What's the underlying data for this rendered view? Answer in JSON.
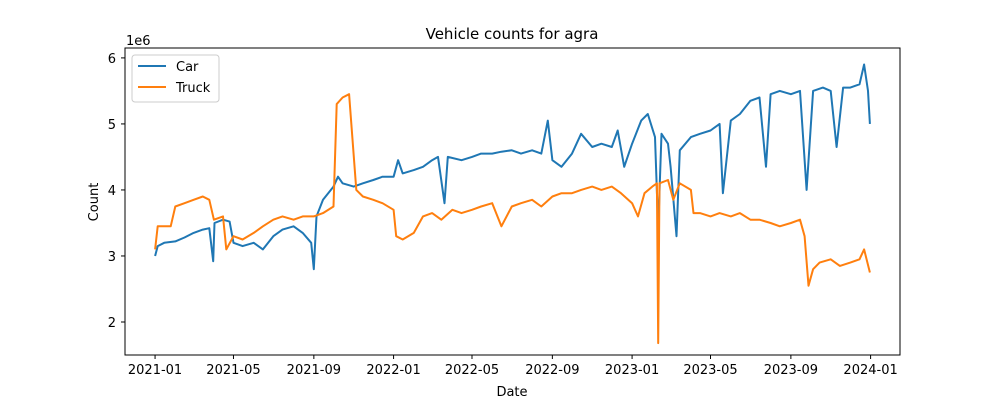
{
  "chart_data": {
    "type": "line",
    "title": "Vehicle counts for agra",
    "xlabel": "Date",
    "ylabel": "Count",
    "y_offset_label": "1e6",
    "xlim": [
      "2020-11-16",
      "2024-02-15"
    ],
    "ylim": [
      1.5,
      6.15
    ],
    "y_scale_factor": 1000000,
    "grid": false,
    "legend_position": "top-left",
    "x_ticks": [
      {
        "date": "2021-01-01",
        "label": "2021-01"
      },
      {
        "date": "2021-05-01",
        "label": "2021-05"
      },
      {
        "date": "2021-09-01",
        "label": "2021-09"
      },
      {
        "date": "2022-01-01",
        "label": "2022-01"
      },
      {
        "date": "2022-05-01",
        "label": "2022-05"
      },
      {
        "date": "2022-09-01",
        "label": "2022-09"
      },
      {
        "date": "2023-01-01",
        "label": "2023-01"
      },
      {
        "date": "2023-05-01",
        "label": "2023-05"
      },
      {
        "date": "2023-09-01",
        "label": "2023-09"
      },
      {
        "date": "2024-01-01",
        "label": "2024-01"
      }
    ],
    "y_ticks": [
      {
        "value": 2,
        "label": "2"
      },
      {
        "value": 3,
        "label": "3"
      },
      {
        "value": 4,
        "label": "4"
      },
      {
        "value": 5,
        "label": "5"
      },
      {
        "value": 6,
        "label": "6"
      }
    ],
    "series": [
      {
        "name": "Car",
        "color": "#1f77b4",
        "points": [
          [
            "2021-01-01",
            3.0
          ],
          [
            "2021-01-05",
            3.15
          ],
          [
            "2021-01-15",
            3.2
          ],
          [
            "2021-02-01",
            3.22
          ],
          [
            "2021-02-15",
            3.28
          ],
          [
            "2021-03-01",
            3.35
          ],
          [
            "2021-03-15",
            3.4
          ],
          [
            "2021-03-25",
            3.42
          ],
          [
            "2021-03-31",
            2.92
          ],
          [
            "2021-04-02",
            3.5
          ],
          [
            "2021-04-15",
            3.55
          ],
          [
            "2021-04-25",
            3.52
          ],
          [
            "2021-05-01",
            3.2
          ],
          [
            "2021-05-15",
            3.15
          ],
          [
            "2021-06-01",
            3.2
          ],
          [
            "2021-06-15",
            3.1
          ],
          [
            "2021-07-01",
            3.3
          ],
          [
            "2021-07-15",
            3.4
          ],
          [
            "2021-08-01",
            3.45
          ],
          [
            "2021-08-15",
            3.35
          ],
          [
            "2021-08-28",
            3.2
          ],
          [
            "2021-09-01",
            2.8
          ],
          [
            "2021-09-05",
            3.6
          ],
          [
            "2021-09-15",
            3.85
          ],
          [
            "2021-10-01",
            4.05
          ],
          [
            "2021-10-08",
            4.2
          ],
          [
            "2021-10-15",
            4.1
          ],
          [
            "2021-11-01",
            4.05
          ],
          [
            "2021-11-15",
            4.1
          ],
          [
            "2021-12-01",
            4.15
          ],
          [
            "2021-12-15",
            4.2
          ],
          [
            "2022-01-01",
            4.2
          ],
          [
            "2022-01-08",
            4.45
          ],
          [
            "2022-01-15",
            4.25
          ],
          [
            "2022-02-01",
            4.3
          ],
          [
            "2022-02-15",
            4.35
          ],
          [
            "2022-03-01",
            4.45
          ],
          [
            "2022-03-10",
            4.5
          ],
          [
            "2022-03-20",
            3.8
          ],
          [
            "2022-03-25",
            4.5
          ],
          [
            "2022-04-15",
            4.45
          ],
          [
            "2022-05-01",
            4.5
          ],
          [
            "2022-05-15",
            4.55
          ],
          [
            "2022-06-01",
            4.55
          ],
          [
            "2022-06-15",
            4.58
          ],
          [
            "2022-07-01",
            4.6
          ],
          [
            "2022-07-15",
            4.55
          ],
          [
            "2022-08-01",
            4.6
          ],
          [
            "2022-08-15",
            4.55
          ],
          [
            "2022-08-25",
            5.05
          ],
          [
            "2022-09-01",
            4.45
          ],
          [
            "2022-09-15",
            4.35
          ],
          [
            "2022-10-01",
            4.55
          ],
          [
            "2022-10-15",
            4.85
          ],
          [
            "2022-11-01",
            4.65
          ],
          [
            "2022-11-15",
            4.7
          ],
          [
            "2022-12-01",
            4.65
          ],
          [
            "2022-12-10",
            4.9
          ],
          [
            "2022-12-20",
            4.35
          ],
          [
            "2023-01-01",
            4.7
          ],
          [
            "2023-01-15",
            5.05
          ],
          [
            "2023-01-25",
            5.15
          ],
          [
            "2023-02-05",
            4.8
          ],
          [
            "2023-02-10",
            3.4
          ],
          [
            "2023-02-15",
            4.85
          ],
          [
            "2023-02-25",
            4.7
          ],
          [
            "2023-03-01",
            4.35
          ],
          [
            "2023-03-10",
            3.3
          ],
          [
            "2023-03-15",
            4.6
          ],
          [
            "2023-04-01",
            4.8
          ],
          [
            "2023-04-15",
            4.85
          ],
          [
            "2023-05-01",
            4.9
          ],
          [
            "2023-05-15",
            5.0
          ],
          [
            "2023-05-20",
            3.95
          ],
          [
            "2023-06-01",
            5.05
          ],
          [
            "2023-06-15",
            5.15
          ],
          [
            "2023-07-01",
            5.35
          ],
          [
            "2023-07-15",
            5.4
          ],
          [
            "2023-07-25",
            4.35
          ],
          [
            "2023-08-01",
            5.45
          ],
          [
            "2023-08-15",
            5.5
          ],
          [
            "2023-09-01",
            5.45
          ],
          [
            "2023-09-15",
            5.5
          ],
          [
            "2023-09-25",
            4.0
          ],
          [
            "2023-10-05",
            5.5
          ],
          [
            "2023-10-20",
            5.55
          ],
          [
            "2023-11-01",
            5.5
          ],
          [
            "2023-11-10",
            4.65
          ],
          [
            "2023-11-20",
            5.55
          ],
          [
            "2023-12-01",
            5.55
          ],
          [
            "2023-12-15",
            5.6
          ],
          [
            "2023-12-22",
            5.9
          ],
          [
            "2023-12-28",
            5.5
          ],
          [
            "2023-12-31",
            5.0
          ]
        ]
      },
      {
        "name": "Truck",
        "color": "#ff7f0e",
        "points": [
          [
            "2021-01-01",
            3.1
          ],
          [
            "2021-01-05",
            3.45
          ],
          [
            "2021-01-25",
            3.45
          ],
          [
            "2021-02-01",
            3.75
          ],
          [
            "2021-02-15",
            3.8
          ],
          [
            "2021-03-01",
            3.85
          ],
          [
            "2021-03-15",
            3.9
          ],
          [
            "2021-03-25",
            3.85
          ],
          [
            "2021-04-01",
            3.55
          ],
          [
            "2021-04-15",
            3.6
          ],
          [
            "2021-04-20",
            3.1
          ],
          [
            "2021-05-01",
            3.3
          ],
          [
            "2021-05-15",
            3.25
          ],
          [
            "2021-06-01",
            3.35
          ],
          [
            "2021-06-15",
            3.45
          ],
          [
            "2021-07-01",
            3.55
          ],
          [
            "2021-07-15",
            3.6
          ],
          [
            "2021-08-01",
            3.55
          ],
          [
            "2021-08-15",
            3.6
          ],
          [
            "2021-09-01",
            3.6
          ],
          [
            "2021-09-15",
            3.65
          ],
          [
            "2021-10-01",
            3.75
          ],
          [
            "2021-10-06",
            5.3
          ],
          [
            "2021-10-15",
            5.4
          ],
          [
            "2021-10-25",
            5.45
          ],
          [
            "2021-11-05",
            4.0
          ],
          [
            "2021-11-15",
            3.9
          ],
          [
            "2021-12-01",
            3.85
          ],
          [
            "2021-12-15",
            3.8
          ],
          [
            "2022-01-01",
            3.7
          ],
          [
            "2022-01-05",
            3.3
          ],
          [
            "2022-01-15",
            3.25
          ],
          [
            "2022-02-01",
            3.35
          ],
          [
            "2022-02-15",
            3.6
          ],
          [
            "2022-03-01",
            3.65
          ],
          [
            "2022-03-15",
            3.55
          ],
          [
            "2022-04-01",
            3.7
          ],
          [
            "2022-04-15",
            3.65
          ],
          [
            "2022-05-01",
            3.7
          ],
          [
            "2022-05-15",
            3.75
          ],
          [
            "2022-06-01",
            3.8
          ],
          [
            "2022-06-15",
            3.45
          ],
          [
            "2022-07-01",
            3.75
          ],
          [
            "2022-07-15",
            3.8
          ],
          [
            "2022-08-01",
            3.85
          ],
          [
            "2022-08-15",
            3.75
          ],
          [
            "2022-09-01",
            3.9
          ],
          [
            "2022-09-15",
            3.95
          ],
          [
            "2022-10-01",
            3.95
          ],
          [
            "2022-10-15",
            4.0
          ],
          [
            "2022-11-01",
            4.05
          ],
          [
            "2022-11-15",
            4.0
          ],
          [
            "2022-12-01",
            4.05
          ],
          [
            "2022-12-15",
            3.95
          ],
          [
            "2023-01-01",
            3.8
          ],
          [
            "2023-01-10",
            3.6
          ],
          [
            "2023-01-20",
            3.95
          ],
          [
            "2023-02-01",
            4.05
          ],
          [
            "2023-02-08",
            4.1
          ],
          [
            "2023-02-10",
            1.68
          ],
          [
            "2023-02-12",
            4.1
          ],
          [
            "2023-02-25",
            4.15
          ],
          [
            "2023-03-05",
            3.85
          ],
          [
            "2023-03-15",
            4.1
          ],
          [
            "2023-04-01",
            4.0
          ],
          [
            "2023-04-05",
            3.65
          ],
          [
            "2023-04-15",
            3.65
          ],
          [
            "2023-05-01",
            3.6
          ],
          [
            "2023-05-15",
            3.65
          ],
          [
            "2023-06-01",
            3.6
          ],
          [
            "2023-06-15",
            3.65
          ],
          [
            "2023-07-01",
            3.55
          ],
          [
            "2023-07-15",
            3.55
          ],
          [
            "2023-08-01",
            3.5
          ],
          [
            "2023-08-15",
            3.45
          ],
          [
            "2023-09-01",
            3.5
          ],
          [
            "2023-09-15",
            3.55
          ],
          [
            "2023-09-22",
            3.3
          ],
          [
            "2023-09-28",
            2.55
          ],
          [
            "2023-10-05",
            2.8
          ],
          [
            "2023-10-15",
            2.9
          ],
          [
            "2023-11-01",
            2.95
          ],
          [
            "2023-11-15",
            2.85
          ],
          [
            "2023-12-01",
            2.9
          ],
          [
            "2023-12-15",
            2.95
          ],
          [
            "2023-12-22",
            3.1
          ],
          [
            "2023-12-31",
            2.75
          ]
        ]
      }
    ]
  }
}
